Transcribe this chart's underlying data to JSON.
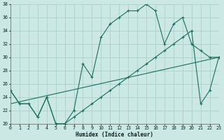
{
  "xlabel": "Humidex (Indice chaleur)",
  "bg_color": "#cce8e4",
  "grid_color": "#aacfcb",
  "line_color": "#1a6e60",
  "xlim": [
    0,
    23
  ],
  "ylim": [
    20,
    38
  ],
  "xticks": [
    0,
    1,
    2,
    3,
    4,
    5,
    6,
    7,
    8,
    9,
    10,
    11,
    12,
    13,
    14,
    15,
    16,
    17,
    18,
    19,
    20,
    21,
    22,
    23
  ],
  "yticks": [
    20,
    22,
    24,
    26,
    28,
    30,
    32,
    34,
    36,
    38
  ],
  "line1_x": [
    0,
    1,
    2,
    3,
    4,
    5,
    6,
    7,
    8,
    9,
    10,
    11,
    12,
    13,
    14,
    15,
    16,
    17,
    18,
    19,
    20,
    21,
    22,
    23
  ],
  "line1_y": [
    25,
    23,
    23,
    21,
    24,
    20,
    20,
    22,
    29,
    27,
    33,
    35,
    36,
    37,
    37,
    38,
    37,
    32,
    35,
    36,
    32,
    31,
    30,
    30
  ],
  "line2_x": [
    0,
    1,
    2,
    3,
    4,
    5,
    6,
    7,
    8,
    9,
    10,
    11,
    12,
    13,
    14,
    15,
    16,
    17,
    18,
    19,
    20,
    21,
    22,
    23
  ],
  "line2_y": [
    25,
    23,
    23,
    21,
    24,
    20,
    20,
    21,
    22,
    23,
    24,
    25,
    26,
    27,
    28,
    29,
    30,
    31,
    32,
    33,
    34,
    23,
    25,
    30
  ],
  "line3_x": [
    0,
    23
  ],
  "line3_y": [
    23,
    30
  ]
}
